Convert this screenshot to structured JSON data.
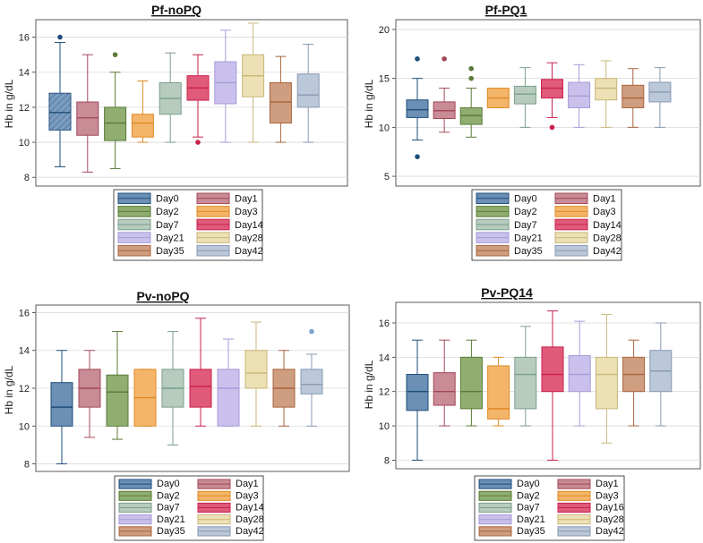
{
  "legend_labels": {
    "default": [
      "Day0",
      "Day1",
      "Day2",
      "Day3",
      "Day7",
      "Day14",
      "Day21",
      "Day28",
      "Day35",
      "Day42"
    ],
    "pv_pq14": [
      "Day0",
      "Day1",
      "Day2",
      "Day3",
      "Day7",
      "Day16",
      "Day21",
      "Day28",
      "Day35",
      "Day42"
    ]
  },
  "colors": {
    "fills": [
      "#6b8fb5",
      "#c98b95",
      "#8fae70",
      "#f3b56a",
      "#b7cbbf",
      "#e05a7a",
      "#c9c0ec",
      "#ece0b4",
      "#cf9d80",
      "#bac8d9"
    ],
    "strokes": [
      "#1f4e79",
      "#a3485a",
      "#5b7a3a",
      "#e08a25",
      "#7a9e8a",
      "#c8214a",
      "#a89bd8",
      "#c9b67a",
      "#a8643e",
      "#8898b2"
    ],
    "outliers": [
      "#1f4e79",
      "#a3485a",
      "#5b7a3a",
      "#e08a25",
      "#7a9e8a",
      "#c8214a",
      "#a89bd8",
      "#c9b67a",
      "#a8643e",
      "#7aa6d0"
    ]
  },
  "chart_data": [
    {
      "type": "box",
      "title": "Pf-noPQ",
      "ylabel": "Hb in g/dL",
      "ylim": [
        7.5,
        17
      ],
      "yticks": [
        8,
        10,
        12,
        14,
        16
      ],
      "grid": true,
      "legend": "default",
      "boxes": [
        {
          "name": "Day0",
          "wlo": 8.6,
          "q1": 10.7,
          "med": 11.7,
          "q3": 12.8,
          "whi": 15.7,
          "outliers": [
            16
          ]
        },
        {
          "name": "Day1",
          "wlo": 8.3,
          "q1": 10.4,
          "med": 11.4,
          "q3": 12.3,
          "whi": 15,
          "outliers": []
        },
        {
          "name": "Day2",
          "wlo": 8.5,
          "q1": 10.1,
          "med": 11.1,
          "q3": 12,
          "whi": 14,
          "outliers": [
            15
          ]
        },
        {
          "name": "Day3",
          "wlo": 10,
          "q1": 10.3,
          "med": 11.1,
          "q3": 11.6,
          "whi": 13.5,
          "outliers": []
        },
        {
          "name": "Day7",
          "wlo": 10,
          "q1": 11.6,
          "med": 12.5,
          "q3": 13.4,
          "whi": 15.1,
          "outliers": []
        },
        {
          "name": "Day14",
          "wlo": 10.3,
          "q1": 12.4,
          "med": 13.1,
          "q3": 13.8,
          "whi": 15,
          "outliers": [
            10
          ]
        },
        {
          "name": "Day21",
          "wlo": 10,
          "q1": 12.2,
          "med": 13.4,
          "q3": 14.6,
          "whi": 16.4,
          "outliers": []
        },
        {
          "name": "Day28",
          "wlo": 10,
          "q1": 12.6,
          "med": 13.8,
          "q3": 15,
          "whi": 16.8,
          "outliers": []
        },
        {
          "name": "Day35",
          "wlo": 10,
          "q1": 11.1,
          "med": 12.3,
          "q3": 13.4,
          "whi": 14.9,
          "outliers": []
        },
        {
          "name": "Day42",
          "wlo": 10,
          "q1": 12,
          "med": 12.7,
          "q3": 13.9,
          "whi": 15.6,
          "outliers": []
        }
      ]
    },
    {
      "type": "box",
      "title": "Pf-PQ1",
      "ylabel": "Hb in g/dL",
      "ylim": [
        4,
        21
      ],
      "yticks": [
        5,
        10,
        15,
        20
      ],
      "grid": true,
      "legend": "default",
      "boxes": [
        {
          "name": "Day0",
          "wlo": 8.7,
          "q1": 11,
          "med": 11.8,
          "q3": 12.8,
          "whi": 15,
          "outliers": [
            17,
            7
          ]
        },
        {
          "name": "Day1",
          "wlo": 9.5,
          "q1": 10.9,
          "med": 11.7,
          "q3": 12.6,
          "whi": 14,
          "outliers": [
            17
          ]
        },
        {
          "name": "Day2",
          "wlo": 9,
          "q1": 10.3,
          "med": 11.2,
          "q3": 12,
          "whi": 14,
          "outliers": [
            16,
            15
          ]
        },
        {
          "name": "Day3",
          "wlo": 12,
          "q1": 12,
          "med": 13,
          "q3": 14,
          "whi": 14,
          "outliers": []
        },
        {
          "name": "Day7",
          "wlo": 10,
          "q1": 12.4,
          "med": 13.4,
          "q3": 14.2,
          "whi": 16.1,
          "outliers": []
        },
        {
          "name": "Day14",
          "wlo": 11,
          "q1": 13,
          "med": 14,
          "q3": 14.9,
          "whi": 16.6,
          "outliers": [
            10
          ]
        },
        {
          "name": "Day21",
          "wlo": 10,
          "q1": 12,
          "med": 13.2,
          "q3": 14.6,
          "whi": 16.4,
          "outliers": []
        },
        {
          "name": "Day28",
          "wlo": 10,
          "q1": 12.8,
          "med": 14,
          "q3": 15,
          "whi": 16.8,
          "outliers": []
        },
        {
          "name": "Day35",
          "wlo": 10,
          "q1": 12,
          "med": 13,
          "q3": 14.3,
          "whi": 16,
          "outliers": []
        },
        {
          "name": "Day42",
          "wlo": 10,
          "q1": 12.6,
          "med": 13.6,
          "q3": 14.6,
          "whi": 16.1,
          "outliers": []
        }
      ]
    },
    {
      "type": "box",
      "title": "Pv-noPQ",
      "ylabel": "Hb in g/dL",
      "ylim": [
        7.6,
        16.4
      ],
      "yticks": [
        8,
        10,
        12,
        14,
        16
      ],
      "grid": true,
      "legend": "default",
      "boxes": [
        {
          "name": "Day0",
          "wlo": 8,
          "q1": 10,
          "med": 11,
          "q3": 12.3,
          "whi": 14,
          "outliers": []
        },
        {
          "name": "Day1",
          "wlo": 9.4,
          "q1": 11,
          "med": 12,
          "q3": 13,
          "whi": 14,
          "outliers": []
        },
        {
          "name": "Day2",
          "wlo": 9.3,
          "q1": 10,
          "med": 11.8,
          "q3": 12.7,
          "whi": 15,
          "outliers": []
        },
        {
          "name": "Day3",
          "wlo": 10,
          "q1": 10,
          "med": 11.5,
          "q3": 13,
          "whi": 13,
          "outliers": []
        },
        {
          "name": "Day7",
          "wlo": 9,
          "q1": 11,
          "med": 12,
          "q3": 13,
          "whi": 15,
          "outliers": []
        },
        {
          "name": "Day14",
          "wlo": 10,
          "q1": 11,
          "med": 12.1,
          "q3": 13,
          "whi": 15.7,
          "outliers": []
        },
        {
          "name": "Day21",
          "wlo": 10,
          "q1": 10,
          "med": 12,
          "q3": 13,
          "whi": 14.6,
          "outliers": []
        },
        {
          "name": "Day28",
          "wlo": 10,
          "q1": 12,
          "med": 12.8,
          "q3": 14,
          "whi": 15.5,
          "outliers": []
        },
        {
          "name": "Day35",
          "wlo": 10,
          "q1": 11,
          "med": 12,
          "q3": 13,
          "whi": 14,
          "outliers": []
        },
        {
          "name": "Day42",
          "wlo": 10,
          "q1": 11.7,
          "med": 12.2,
          "q3": 13,
          "whi": 13.8,
          "outliers": [
            15
          ]
        }
      ]
    },
    {
      "type": "box",
      "title": "Pv-PQ14",
      "ylabel": "Hb in g/dL",
      "ylim": [
        7.5,
        17.2
      ],
      "yticks": [
        8,
        10,
        12,
        14,
        16
      ],
      "grid": true,
      "legend": "pv_pq14",
      "boxes": [
        {
          "name": "Day0",
          "wlo": 8,
          "q1": 10.9,
          "med": 12,
          "q3": 13,
          "whi": 15,
          "outliers": []
        },
        {
          "name": "Day1",
          "wlo": 10,
          "q1": 11.2,
          "med": 12,
          "q3": 13.1,
          "whi": 15,
          "outliers": []
        },
        {
          "name": "Day2",
          "wlo": 10,
          "q1": 11,
          "med": 12,
          "q3": 14,
          "whi": 15,
          "outliers": []
        },
        {
          "name": "Day3",
          "wlo": 10,
          "q1": 10.4,
          "med": 11,
          "q3": 13.5,
          "whi": 14,
          "outliers": []
        },
        {
          "name": "Day7",
          "wlo": 10,
          "q1": 11,
          "med": 13,
          "q3": 14,
          "whi": 15.8,
          "outliers": []
        },
        {
          "name": "Day16",
          "wlo": 8,
          "q1": 12,
          "med": 13,
          "q3": 14.6,
          "whi": 16.7,
          "outliers": []
        },
        {
          "name": "Day21",
          "wlo": 10,
          "q1": 12,
          "med": 13,
          "q3": 14.1,
          "whi": 16.1,
          "outliers": []
        },
        {
          "name": "Day28",
          "wlo": 9,
          "q1": 11,
          "med": 13,
          "q3": 14,
          "whi": 16.5,
          "outliers": []
        },
        {
          "name": "Day35",
          "wlo": 10,
          "q1": 12,
          "med": 13,
          "q3": 14,
          "whi": 15,
          "outliers": []
        },
        {
          "name": "Day42",
          "wlo": 10,
          "q1": 12,
          "med": 13.2,
          "q3": 14.4,
          "whi": 16,
          "outliers": []
        }
      ]
    }
  ]
}
